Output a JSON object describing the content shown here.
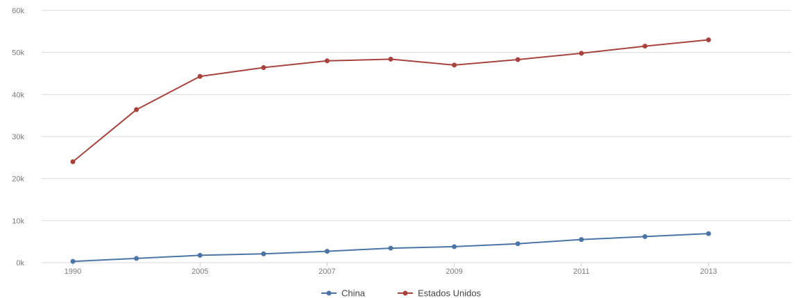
{
  "chart_data": {
    "type": "line",
    "title": "",
    "xlabel": "",
    "ylabel": "",
    "x": [
      "1990",
      "2000",
      "2005",
      "2006",
      "2007",
      "2008",
      "2009",
      "2010",
      "2011",
      "2012",
      "2013"
    ],
    "x_tick_labels": [
      "1990",
      "2005",
      "2007",
      "2009",
      "2011",
      "2013"
    ],
    "y_tick_labels": [
      "0k",
      "10k",
      "20k",
      "30k",
      "40k",
      "50k",
      "60k"
    ],
    "ylim": [
      0,
      60000
    ],
    "grid": true,
    "legend_position": "bottom-center",
    "series": [
      {
        "name": "China",
        "color": "#4a74a6",
        "values": [
          300,
          1000,
          1750,
          2100,
          2700,
          3450,
          3800,
          4500,
          5500,
          6200,
          6900
        ]
      },
      {
        "name": "Estados Unidos",
        "color": "#a8423d",
        "values": [
          24000,
          36400,
          44300,
          46400,
          48000,
          48400,
          47000,
          48300,
          49800,
          51500,
          53000
        ]
      }
    ]
  }
}
